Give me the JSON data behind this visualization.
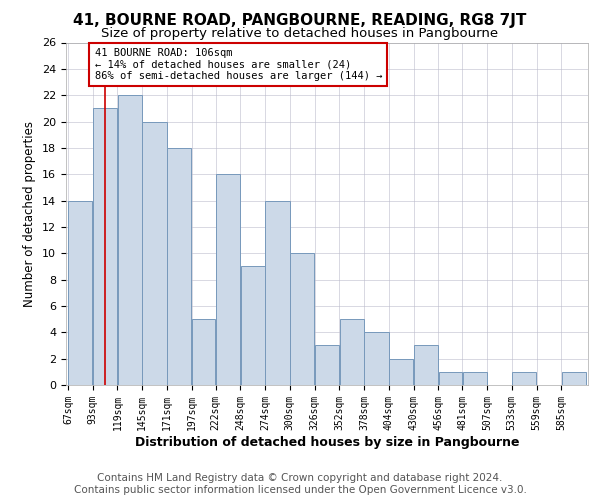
{
  "title": "41, BOURNE ROAD, PANGBOURNE, READING, RG8 7JT",
  "subtitle": "Size of property relative to detached houses in Pangbourne",
  "xlabel": "Distribution of detached houses by size in Pangbourne",
  "ylabel": "Number of detached properties",
  "footer_line1": "Contains HM Land Registry data © Crown copyright and database right 2024.",
  "footer_line2": "Contains public sector information licensed under the Open Government Licence v3.0.",
  "annotation_title": "41 BOURNE ROAD: 106sqm",
  "annotation_line1": "← 14% of detached houses are smaller (24)",
  "annotation_line2": "86% of semi-detached houses are larger (144) →",
  "property_size": 106,
  "bar_left_edges": [
    67,
    93,
    119,
    145,
    171,
    197,
    222,
    248,
    274,
    300,
    326,
    352,
    378,
    404,
    430,
    456,
    481,
    507,
    533,
    559,
    585
  ],
  "bar_widths": [
    26,
    26,
    26,
    26,
    26,
    25,
    26,
    26,
    26,
    26,
    26,
    26,
    26,
    26,
    26,
    25,
    26,
    26,
    26,
    26,
    26
  ],
  "bar_heights": [
    14,
    21,
    22,
    20,
    18,
    5,
    16,
    9,
    14,
    10,
    3,
    5,
    4,
    2,
    3,
    1,
    1,
    0,
    1,
    0,
    1
  ],
  "bar_color": "#ccd9e8",
  "bar_edge_color": "#7799bb",
  "line_color": "#cc0000",
  "annotation_box_color": "#cc0000",
  "ylim": [
    0,
    26
  ],
  "ytick_step": 2,
  "background_color": "#ffffff",
  "grid_color": "#bbbbcc",
  "title_fontsize": 11,
  "subtitle_fontsize": 9.5,
  "xlabel_fontsize": 9,
  "ylabel_fontsize": 8.5,
  "footer_fontsize": 7.5
}
